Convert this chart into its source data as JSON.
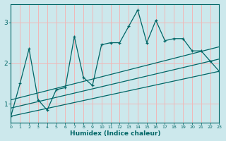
{
  "xlabel": "Humidex (Indice chaleur)",
  "background_color": "#cce8ec",
  "grid_color": "#f0b8b8",
  "line_color": "#006666",
  "y_ticks": [
    1,
    2,
    3
  ],
  "y_lim": [
    0.55,
    3.45
  ],
  "x_lim": [
    0,
    23
  ],
  "series": {
    "main": {
      "x": [
        0,
        1,
        2,
        3,
        4,
        5,
        6,
        7,
        8,
        9,
        10,
        11,
        12,
        13,
        14,
        15,
        16,
        17,
        18,
        19,
        20,
        21,
        22,
        23
      ],
      "y": [
        0.7,
        1.5,
        2.35,
        1.1,
        0.85,
        1.35,
        1.4,
        2.65,
        1.65,
        1.45,
        2.45,
        2.5,
        2.5,
        2.9,
        3.3,
        2.5,
        3.05,
        2.55,
        2.6,
        2.6,
        2.3,
        2.3,
        2.05,
        1.8
      ]
    },
    "upper": {
      "x": [
        0,
        23
      ],
      "y": [
        1.1,
        2.4
      ]
    },
    "middle": {
      "x": [
        0,
        23
      ],
      "y": [
        0.9,
        2.1
      ]
    },
    "lower": {
      "x": [
        0,
        23
      ],
      "y": [
        0.7,
        1.8
      ]
    }
  }
}
